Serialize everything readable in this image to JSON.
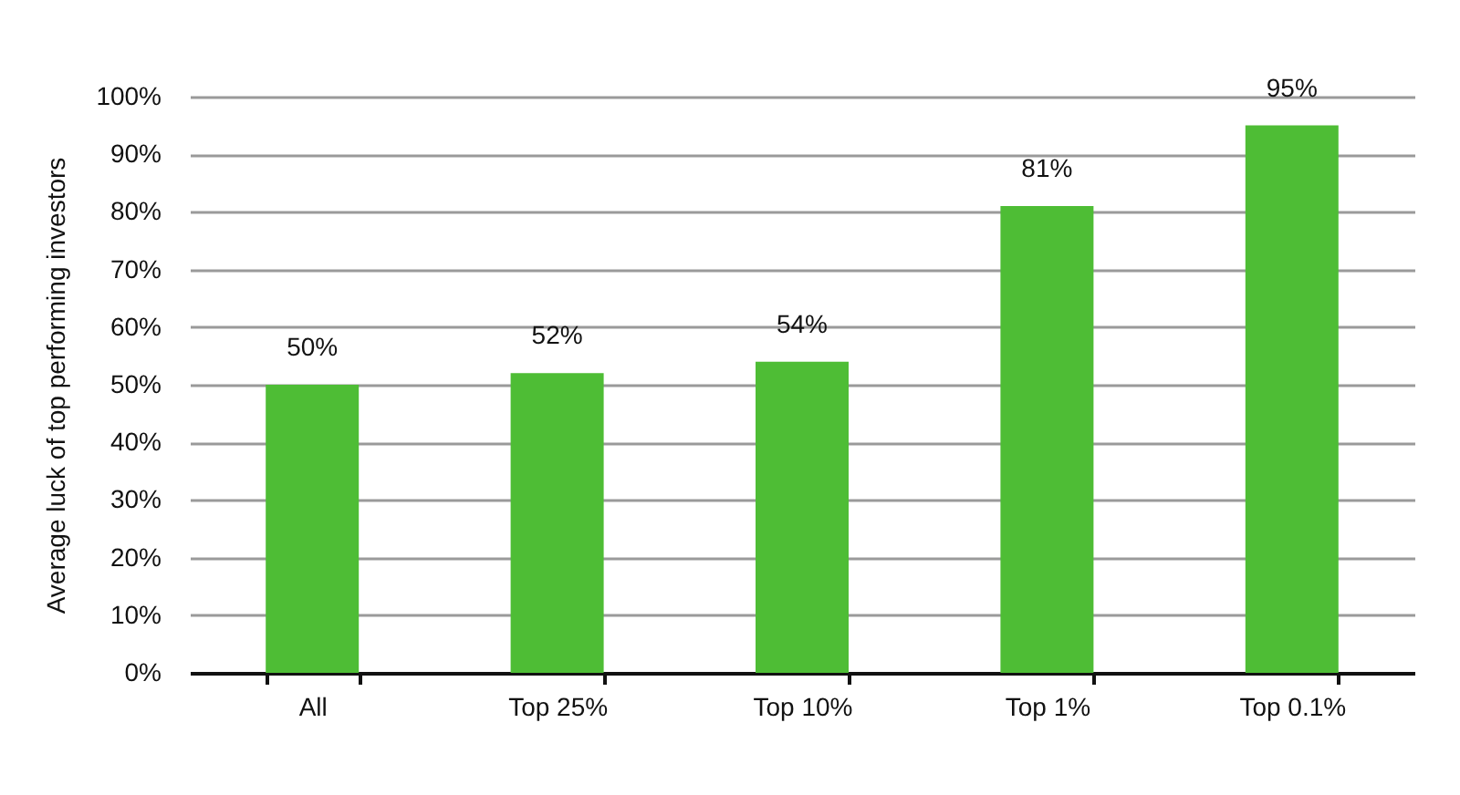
{
  "chart_data": {
    "type": "bar",
    "ylabel": "Average luck of top performing investors",
    "categories": [
      "All",
      "Top 25%",
      "Top 10%",
      "Top 1%",
      "Top 0.1%"
    ],
    "values": [
      50,
      52,
      54,
      81,
      95
    ],
    "color": "#4ebd35",
    "value_labels": [
      "50%",
      "52%",
      "54%",
      "81%",
      "95%"
    ],
    "ylim": [
      0,
      100
    ],
    "yticks": [
      {
        "value": 0,
        "label": "0%"
      },
      {
        "value": 10,
        "label": "10%"
      },
      {
        "value": 20,
        "label": "20%"
      },
      {
        "value": 30,
        "label": "30%"
      },
      {
        "value": 40,
        "label": "40%"
      },
      {
        "value": 50,
        "label": "50%"
      },
      {
        "value": 60,
        "label": "60%"
      },
      {
        "value": 70,
        "label": "70%"
      },
      {
        "value": 80,
        "label": "80%"
      },
      {
        "value": 90,
        "label": "90%"
      },
      {
        "value": 100,
        "label": "100%"
      }
    ],
    "grid": "y"
  }
}
